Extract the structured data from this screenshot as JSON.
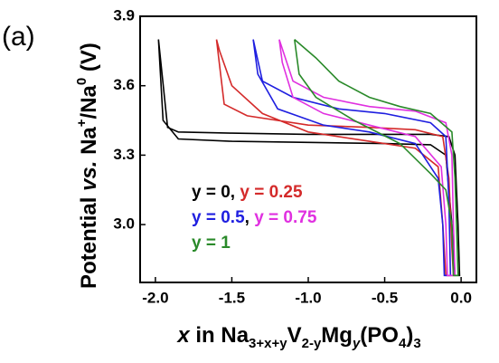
{
  "chart_data": {
    "type": "line",
    "panel_label": "(a)",
    "ylabel": [
      {
        "text": "Potential "
      },
      {
        "text": "vs.",
        "italic": true
      },
      {
        "text": " Na"
      },
      {
        "text": "+",
        "sup": true
      },
      {
        "text": "/Na"
      },
      {
        "text": "0",
        "sup": true
      },
      {
        "text": " (V)"
      }
    ],
    "xlabel": [
      {
        "text": "x",
        "italic": true
      },
      {
        "text": " in Na"
      },
      {
        "text": "3+x+y",
        "sub": true
      },
      {
        "text": "V"
      },
      {
        "text": "2-y",
        "sub": true
      },
      {
        "text": "Mg"
      },
      {
        "text": "y",
        "sub": true,
        "italic": true
      },
      {
        "text": "(PO"
      },
      {
        "text": "4",
        "sub": true
      },
      {
        "text": ")"
      },
      {
        "text": "3",
        "sub": true
      }
    ],
    "xlim": [
      -2.1,
      0.1
    ],
    "ylim": [
      2.75,
      3.9
    ],
    "xticks": [
      {
        "value": -2.0,
        "label": "-2.0"
      },
      -1.5,
      {
        "value": -1.0,
        "label": "-1.0"
      },
      -0.5,
      {
        "value": 0.0,
        "label": "0.0"
      }
    ],
    "yticks": [
      {
        "value": 3.0,
        "label": "3.0"
      },
      3.3,
      3.6,
      3.9
    ],
    "legend_separator": ",",
    "series": [
      {
        "name": "y = 0",
        "color": "#000000",
        "x": [
          -1.98,
          -1.92,
          -1.85,
          -1.5,
          -1.0,
          -0.5,
          -0.2,
          -0.08,
          -0.04,
          -0.02,
          -0.01,
          -0.04,
          -0.06,
          -0.1,
          -0.2,
          -0.5,
          -1.0,
          -1.5,
          -1.85,
          -1.95,
          -1.98
        ],
        "values": [
          3.8,
          3.42,
          3.4,
          3.395,
          3.39,
          3.39,
          3.39,
          3.38,
          3.3,
          3.0,
          2.78,
          2.78,
          3.0,
          3.3,
          3.345,
          3.35,
          3.355,
          3.36,
          3.37,
          3.45,
          3.8
        ]
      },
      {
        "name": "y = 0.25",
        "color": "#d42a2a",
        "x": [
          -1.6,
          -1.55,
          -1.4,
          -1.0,
          -0.6,
          -0.3,
          -0.12,
          -0.08,
          -0.06,
          -0.05,
          -0.1,
          -0.12,
          -0.15,
          -0.3,
          -0.6,
          -1.0,
          -1.3,
          -1.5,
          -1.58,
          -1.6
        ],
        "values": [
          3.8,
          3.52,
          3.47,
          3.43,
          3.42,
          3.41,
          3.38,
          3.2,
          2.9,
          2.78,
          2.78,
          3.0,
          3.25,
          3.33,
          3.36,
          3.4,
          3.48,
          3.6,
          3.75,
          3.8
        ]
      },
      {
        "name": "y = 0.5",
        "color": "#1f1fe0",
        "x": [
          -1.36,
          -1.3,
          -1.1,
          -0.8,
          -0.5,
          -0.2,
          -0.1,
          -0.08,
          -0.07,
          -0.11,
          -0.12,
          -0.15,
          -0.3,
          -0.6,
          -0.9,
          -1.2,
          -1.33,
          -1.36
        ],
        "values": [
          3.8,
          3.62,
          3.55,
          3.5,
          3.48,
          3.44,
          3.38,
          3.1,
          2.78,
          2.78,
          3.0,
          3.2,
          3.35,
          3.4,
          3.43,
          3.5,
          3.65,
          3.8
        ]
      },
      {
        "name": "y = 0.75",
        "color": "#e030e0",
        "x": [
          -1.19,
          -1.1,
          -0.9,
          -0.6,
          -0.3,
          -0.1,
          -0.06,
          -0.05,
          -0.04,
          -0.09,
          -0.1,
          -0.13,
          -0.3,
          -0.6,
          -0.9,
          -1.1,
          -1.17,
          -1.19
        ],
        "values": [
          3.8,
          3.62,
          3.55,
          3.51,
          3.49,
          3.44,
          3.3,
          3.0,
          2.78,
          2.78,
          3.0,
          3.25,
          3.38,
          3.43,
          3.48,
          3.55,
          3.7,
          3.8
        ]
      },
      {
        "name": "y = 1",
        "color": "#2a8a2a",
        "x": [
          -1.09,
          -0.95,
          -0.8,
          -0.6,
          -0.4,
          -0.2,
          -0.06,
          -0.04,
          -0.03,
          -0.02,
          -0.05,
          -0.06,
          -0.1,
          -0.2,
          -0.4,
          -0.7,
          -0.95,
          -1.06,
          -1.09
        ],
        "values": [
          3.8,
          3.72,
          3.62,
          3.55,
          3.51,
          3.48,
          3.4,
          3.2,
          3.0,
          2.78,
          2.78,
          3.0,
          3.15,
          3.22,
          3.35,
          3.45,
          3.55,
          3.65,
          3.8
        ]
      }
    ]
  }
}
